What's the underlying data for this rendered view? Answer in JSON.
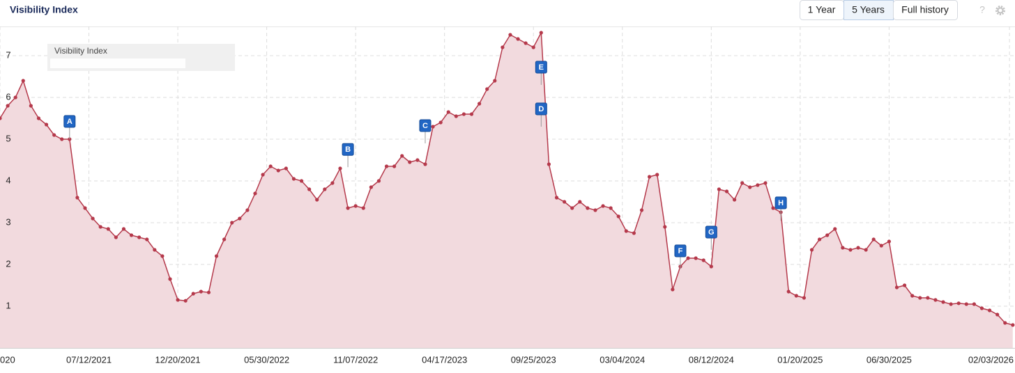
{
  "header": {
    "title": "Visibility Index",
    "buttons": [
      "1 Year",
      "5 Years",
      "Full history"
    ],
    "active_button": "5 Years",
    "help": "?"
  },
  "chart_data": {
    "type": "area",
    "ylim": [
      0,
      7.7
    ],
    "yticks": [
      1,
      2,
      3,
      4,
      5,
      6,
      7
    ],
    "xlim": [
      "2021-02-01",
      "2026-02-13"
    ],
    "xticks": [
      {
        "value": "2021-02-01",
        "label": "020"
      },
      {
        "value": "2021-07-12",
        "label": "07/12/2021"
      },
      {
        "value": "2021-12-20",
        "label": "12/20/2021"
      },
      {
        "value": "2022-05-30",
        "label": "05/30/2022"
      },
      {
        "value": "2022-11-07",
        "label": "11/07/2022"
      },
      {
        "value": "2023-04-17",
        "label": "04/17/2023"
      },
      {
        "value": "2023-09-25",
        "label": "09/25/2023"
      },
      {
        "value": "2024-03-04",
        "label": "03/04/2024"
      },
      {
        "value": "2024-08-12",
        "label": "08/12/2024"
      },
      {
        "value": "2025-01-20",
        "label": "01/20/2025"
      },
      {
        "value": "2025-06-30",
        "label": "06/30/2025"
      },
      {
        "value": "2026-02-03",
        "label": "02/03/2026"
      }
    ],
    "grid": true,
    "x": [
      "2021-02-01",
      "2021-02-15",
      "2021-03-01",
      "2021-03-15",
      "2021-03-29",
      "2021-04-12",
      "2021-04-26",
      "2021-05-10",
      "2021-05-24",
      "2021-06-07",
      "2021-06-21",
      "2021-07-05",
      "2021-07-19",
      "2021-08-02",
      "2021-08-16",
      "2021-08-30",
      "2021-09-13",
      "2021-09-27",
      "2021-10-11",
      "2021-10-25",
      "2021-11-08",
      "2021-11-22",
      "2021-12-06",
      "2021-12-20",
      "2022-01-03",
      "2022-01-17",
      "2022-01-31",
      "2022-02-14",
      "2022-02-28",
      "2022-03-14",
      "2022-03-28",
      "2022-04-11",
      "2022-04-25",
      "2022-05-09",
      "2022-05-23",
      "2022-06-06",
      "2022-06-20",
      "2022-07-04",
      "2022-07-18",
      "2022-08-01",
      "2022-08-15",
      "2022-08-29",
      "2022-09-12",
      "2022-09-26",
      "2022-10-10",
      "2022-10-24",
      "2022-11-07",
      "2022-11-21",
      "2022-12-05",
      "2022-12-19",
      "2023-01-02",
      "2023-01-16",
      "2023-01-30",
      "2023-02-13",
      "2023-02-27",
      "2023-03-13",
      "2023-03-27",
      "2023-04-10",
      "2023-04-24",
      "2023-05-08",
      "2023-05-22",
      "2023-06-05",
      "2023-06-19",
      "2023-07-03",
      "2023-07-17",
      "2023-07-31",
      "2023-08-14",
      "2023-08-28",
      "2023-09-11",
      "2023-09-25",
      "2023-10-09",
      "2023-10-23",
      "2023-11-06",
      "2023-11-20",
      "2023-12-04",
      "2023-12-18",
      "2024-01-01",
      "2024-01-15",
      "2024-01-29",
      "2024-02-12",
      "2024-02-26",
      "2024-03-11",
      "2024-03-25",
      "2024-04-08",
      "2024-04-22",
      "2024-05-06",
      "2024-05-20",
      "2024-06-03",
      "2024-06-17",
      "2024-07-01",
      "2024-07-15",
      "2024-07-29",
      "2024-08-12",
      "2024-08-26",
      "2024-09-09",
      "2024-09-23",
      "2024-10-07",
      "2024-10-21",
      "2024-11-04",
      "2024-11-18",
      "2024-12-02",
      "2024-12-16",
      "2024-12-30",
      "2025-01-13",
      "2025-01-27",
      "2025-02-10",
      "2025-02-24",
      "2025-03-10",
      "2025-03-24",
      "2025-04-07",
      "2025-04-21",
      "2025-05-05",
      "2025-05-19",
      "2025-06-02",
      "2025-06-16",
      "2025-06-30",
      "2025-07-14",
      "2025-07-28",
      "2025-08-11",
      "2025-08-25",
      "2025-09-08",
      "2025-09-22",
      "2025-10-06",
      "2025-10-20",
      "2025-11-03",
      "2025-11-17",
      "2025-12-01",
      "2025-12-15",
      "2025-12-29",
      "2026-01-12",
      "2026-01-26",
      "2026-02-09"
    ],
    "series": [
      {
        "name": "Visibility Index",
        "color": "#b5394b",
        "fill": "#f2dade",
        "values": [
          5.5,
          5.8,
          6.0,
          6.4,
          5.8,
          5.5,
          5.35,
          5.1,
          5.0,
          5.0,
          3.6,
          3.35,
          3.1,
          2.9,
          2.85,
          2.65,
          2.85,
          2.7,
          2.65,
          2.6,
          2.35,
          2.2,
          1.65,
          1.15,
          1.13,
          1.3,
          1.35,
          1.33,
          2.2,
          2.6,
          3.0,
          3.1,
          3.3,
          3.7,
          4.15,
          4.35,
          4.25,
          4.3,
          4.05,
          4.0,
          3.8,
          3.55,
          3.8,
          3.95,
          4.3,
          3.35,
          3.4,
          3.35,
          3.85,
          4.0,
          4.35,
          4.35,
          4.6,
          4.45,
          4.5,
          4.4,
          5.3,
          5.4,
          5.65,
          5.55,
          5.6,
          5.6,
          5.85,
          6.2,
          6.4,
          7.2,
          7.5,
          7.4,
          7.3,
          7.2,
          7.55,
          4.4,
          3.6,
          3.5,
          3.35,
          3.5,
          3.35,
          3.3,
          3.4,
          3.35,
          3.15,
          2.8,
          2.75,
          3.3,
          4.1,
          4.15,
          2.9,
          1.4,
          1.95,
          2.15,
          2.15,
          2.1,
          1.95,
          3.8,
          3.75,
          3.55,
          3.95,
          3.85,
          3.9,
          3.95,
          3.35,
          3.25,
          1.35,
          1.25,
          1.2,
          2.35,
          2.6,
          2.7,
          2.85,
          2.4,
          2.35,
          2.4,
          2.35,
          2.6,
          2.45,
          2.55,
          1.45,
          1.5,
          1.25,
          1.2,
          1.2,
          1.15,
          1.1,
          1.05,
          1.07,
          1.05,
          1.05,
          0.95,
          0.9,
          0.8,
          0.6,
          0.55
        ]
      }
    ],
    "annotations": [
      {
        "label": "A",
        "x": "2021-06-07",
        "y": 5.0
      },
      {
        "label": "B",
        "x": "2022-10-24",
        "y": 4.33
      },
      {
        "label": "C",
        "x": "2023-03-13",
        "y": 4.9
      },
      {
        "label": "D",
        "x": "2023-10-09",
        "y": 5.3
      },
      {
        "label": "E",
        "x": "2023-10-09",
        "y": 6.3
      },
      {
        "label": "F",
        "x": "2024-06-17",
        "y": 1.9
      },
      {
        "label": "G",
        "x": "2024-08-12",
        "y": 2.35
      },
      {
        "label": "H",
        "x": "2024-12-16",
        "y": 3.05
      }
    ]
  }
}
